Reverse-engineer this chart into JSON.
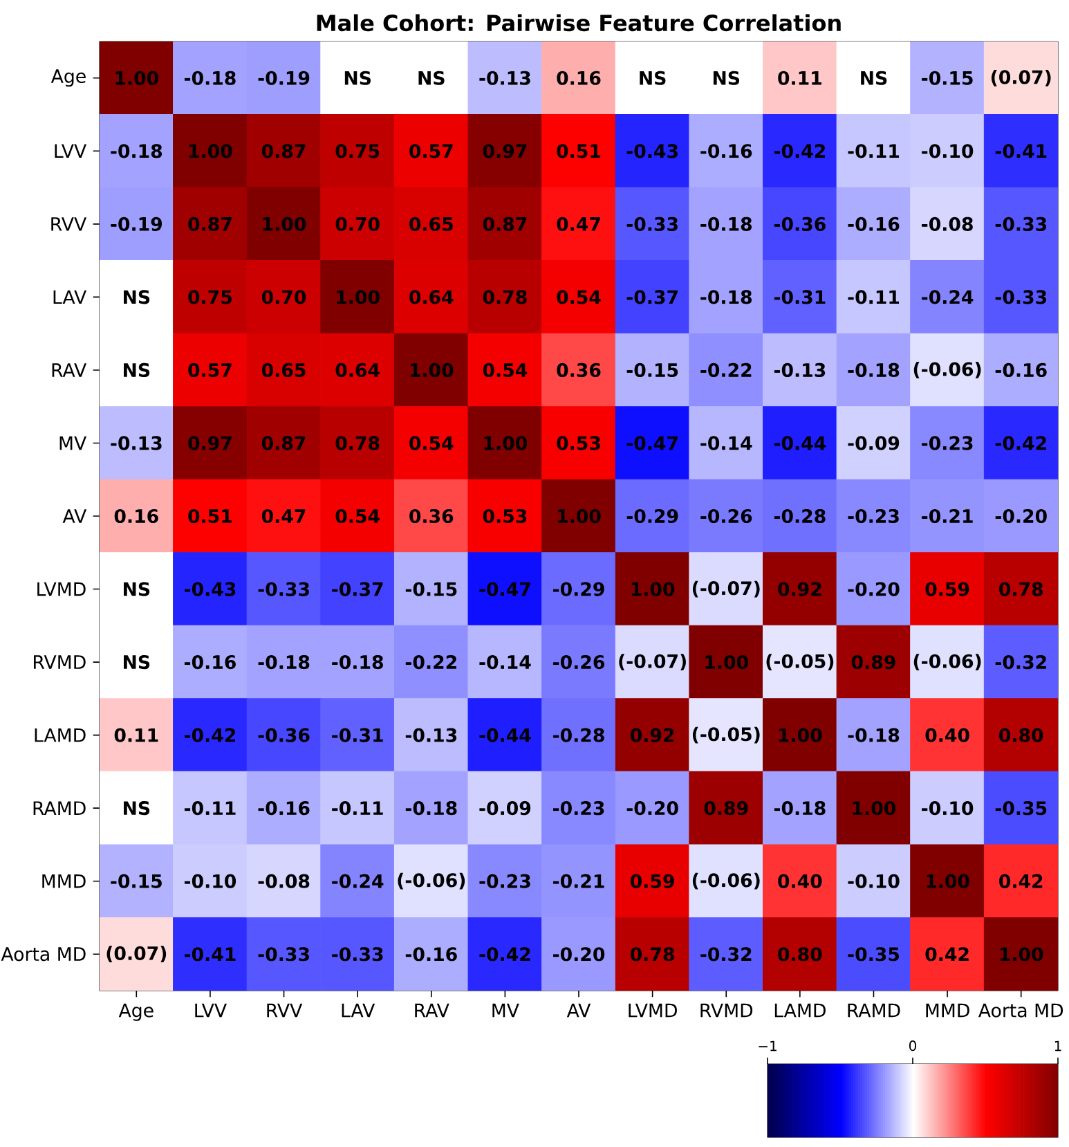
{
  "chart_data": {
    "type": "heatmap",
    "title": "Male Cohort: Pairwise Feature Correlation",
    "categories": [
      "Age",
      "LVV",
      "RVV",
      "LAV",
      "RAV",
      "MV",
      "AV",
      "LVMD",
      "RVMD",
      "LAMD",
      "RAMD",
      "MMD",
      "Aorta MD"
    ],
    "y_categories": [
      "Age",
      "LVV",
      "RVV",
      "LAV",
      "RAV",
      "MV",
      "AV",
      "LVMD",
      "RVMD",
      "LAMD",
      "RAMD",
      "MMD",
      "Aorta MD"
    ],
    "cells": [
      [
        1.0,
        -0.18,
        -0.19,
        0,
        0,
        -0.13,
        0.16,
        0,
        0,
        0.11,
        0,
        -0.15,
        0.07
      ],
      [
        -0.18,
        1.0,
        0.87,
        0.75,
        0.57,
        0.97,
        0.51,
        -0.43,
        -0.16,
        -0.42,
        -0.11,
        -0.1,
        -0.41
      ],
      [
        -0.19,
        0.87,
        1.0,
        0.7,
        0.65,
        0.87,
        0.47,
        -0.33,
        -0.18,
        -0.36,
        -0.16,
        -0.08,
        -0.33
      ],
      [
        0,
        0.75,
        0.7,
        1.0,
        0.64,
        0.78,
        0.54,
        -0.37,
        -0.18,
        -0.31,
        -0.11,
        -0.24,
        -0.33
      ],
      [
        0,
        0.57,
        0.65,
        0.64,
        1.0,
        0.54,
        0.36,
        -0.15,
        -0.22,
        -0.13,
        -0.18,
        -0.06,
        -0.16
      ],
      [
        -0.13,
        0.97,
        0.87,
        0.78,
        0.54,
        1.0,
        0.53,
        -0.47,
        -0.14,
        -0.44,
        -0.09,
        -0.23,
        -0.42
      ],
      [
        0.16,
        0.51,
        0.47,
        0.54,
        0.36,
        0.53,
        1.0,
        -0.29,
        -0.26,
        -0.28,
        -0.23,
        -0.21,
        -0.2
      ],
      [
        0,
        -0.43,
        -0.33,
        -0.37,
        -0.15,
        -0.47,
        -0.29,
        1.0,
        -0.07,
        0.92,
        -0.2,
        0.59,
        0.78
      ],
      [
        0,
        -0.16,
        -0.18,
        -0.18,
        -0.22,
        -0.14,
        -0.26,
        -0.07,
        1.0,
        -0.05,
        0.89,
        -0.06,
        -0.32
      ],
      [
        0.11,
        -0.42,
        -0.36,
        -0.31,
        -0.13,
        -0.44,
        -0.28,
        0.92,
        -0.05,
        1.0,
        -0.18,
        0.4,
        0.8
      ],
      [
        0,
        -0.11,
        -0.16,
        -0.11,
        -0.18,
        -0.09,
        -0.23,
        -0.2,
        0.89,
        -0.18,
        1.0,
        -0.1,
        -0.35
      ],
      [
        -0.15,
        -0.1,
        -0.08,
        -0.24,
        -0.06,
        -0.23,
        -0.21,
        0.59,
        -0.06,
        0.4,
        -0.1,
        1.0,
        0.42
      ],
      [
        0.07,
        -0.41,
        -0.33,
        -0.33,
        -0.16,
        -0.42,
        -0.2,
        0.78,
        -0.32,
        0.8,
        -0.35,
        0.42,
        1.0
      ]
    ],
    "cell_labels": [
      [
        "1.00",
        "-0.18",
        "-0.19",
        "NS",
        "NS",
        "-0.13",
        "0.16",
        "NS",
        "NS",
        "0.11",
        "NS",
        "-0.15",
        "(0.07)"
      ],
      [
        "-0.18",
        "1.00",
        "0.87",
        "0.75",
        "0.57",
        "0.97",
        "0.51",
        "-0.43",
        "-0.16",
        "-0.42",
        "-0.11",
        "-0.10",
        "-0.41"
      ],
      [
        "-0.19",
        "0.87",
        "1.00",
        "0.70",
        "0.65",
        "0.87",
        "0.47",
        "-0.33",
        "-0.18",
        "-0.36",
        "-0.16",
        "-0.08",
        "-0.33"
      ],
      [
        "NS",
        "0.75",
        "0.70",
        "1.00",
        "0.64",
        "0.78",
        "0.54",
        "-0.37",
        "-0.18",
        "-0.31",
        "-0.11",
        "-0.24",
        "-0.33"
      ],
      [
        "NS",
        "0.57",
        "0.65",
        "0.64",
        "1.00",
        "0.54",
        "0.36",
        "-0.15",
        "-0.22",
        "-0.13",
        "-0.18",
        "(-0.06)",
        "-0.16"
      ],
      [
        "-0.13",
        "0.97",
        "0.87",
        "0.78",
        "0.54",
        "1.00",
        "0.53",
        "-0.47",
        "-0.14",
        "-0.44",
        "-0.09",
        "-0.23",
        "-0.42"
      ],
      [
        "0.16",
        "0.51",
        "0.47",
        "0.54",
        "0.36",
        "0.53",
        "1.00",
        "-0.29",
        "-0.26",
        "-0.28",
        "-0.23",
        "-0.21",
        "-0.20"
      ],
      [
        "NS",
        "-0.43",
        "-0.33",
        "-0.37",
        "-0.15",
        "-0.47",
        "-0.29",
        "1.00",
        "(-0.07)",
        "0.92",
        "-0.20",
        "0.59",
        "0.78"
      ],
      [
        "NS",
        "-0.16",
        "-0.18",
        "-0.18",
        "-0.22",
        "-0.14",
        "-0.26",
        "(-0.07)",
        "1.00",
        "(-0.05)",
        "0.89",
        "(-0.06)",
        "-0.32"
      ],
      [
        "0.11",
        "-0.42",
        "-0.36",
        "-0.31",
        "-0.13",
        "-0.44",
        "-0.28",
        "0.92",
        "(-0.05)",
        "1.00",
        "-0.18",
        "0.40",
        "0.80"
      ],
      [
        "NS",
        "-0.11",
        "-0.16",
        "-0.11",
        "-0.18",
        "-0.09",
        "-0.23",
        "-0.20",
        "0.89",
        "-0.18",
        "1.00",
        "-0.10",
        "-0.35"
      ],
      [
        "-0.15",
        "-0.10",
        "-0.08",
        "-0.24",
        "(-0.06)",
        "-0.23",
        "-0.21",
        "0.59",
        "(-0.06)",
        "0.40",
        "-0.10",
        "1.00",
        "0.42"
      ],
      [
        "(0.07)",
        "-0.41",
        "-0.33",
        "-0.33",
        "-0.16",
        "-0.42",
        "-0.20",
        "0.78",
        "-0.32",
        "0.80",
        "-0.35",
        "0.42",
        "1.00"
      ]
    ],
    "clim": [
      -1,
      1
    ],
    "cticks": [
      {
        "value": -1,
        "label": "−1"
      },
      0,
      1
    ]
  }
}
